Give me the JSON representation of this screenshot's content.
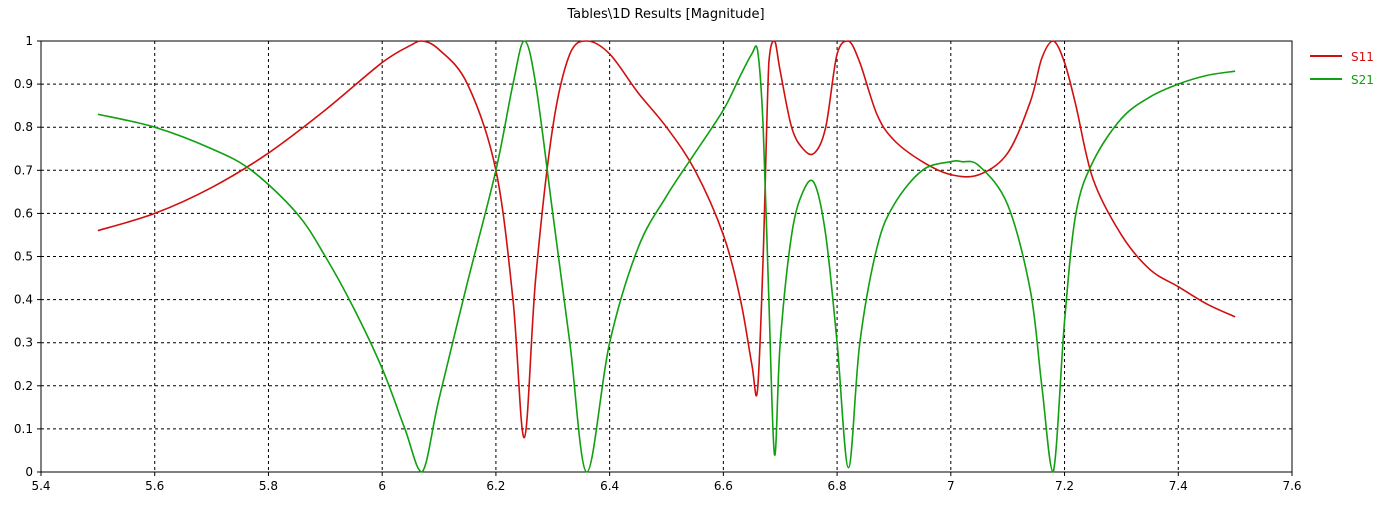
{
  "chart_data": {
    "type": "line",
    "title": "Tables\\1D Results [Magnitude]",
    "xlabel": "",
    "ylabel": "",
    "xlim": [
      5.4,
      7.6
    ],
    "ylim": [
      0,
      1
    ],
    "x_ticks": [
      "5.4",
      "5.6",
      "5.8",
      "6",
      "6.2",
      "6.4",
      "6.6",
      "6.8",
      "7",
      "7.2",
      "7.4",
      "7.6"
    ],
    "y_ticks": [
      "0",
      "0.1",
      "0.2",
      "0.3",
      "0.4",
      "0.5",
      "0.6",
      "0.7",
      "0.8",
      "0.9",
      "1"
    ],
    "grid": true,
    "legend_position": "right",
    "series": [
      {
        "name": "S11",
        "color": "#d01010",
        "x": [
          5.5,
          5.6,
          5.7,
          5.8,
          5.9,
          6.0,
          6.05,
          6.07,
          6.1,
          6.15,
          6.2,
          6.23,
          6.25,
          6.27,
          6.3,
          6.33,
          6.36,
          6.4,
          6.45,
          6.5,
          6.55,
          6.6,
          6.63,
          6.65,
          6.66,
          6.67,
          6.68,
          6.69,
          6.7,
          6.72,
          6.74,
          6.76,
          6.78,
          6.8,
          6.82,
          6.84,
          6.87,
          6.9,
          6.95,
          7.0,
          7.05,
          7.1,
          7.14,
          7.16,
          7.18,
          7.2,
          7.22,
          7.25,
          7.3,
          7.35,
          7.4,
          7.45,
          7.5
        ],
        "y": [
          0.56,
          0.6,
          0.66,
          0.74,
          0.84,
          0.95,
          0.99,
          1.0,
          0.98,
          0.9,
          0.7,
          0.4,
          0.08,
          0.45,
          0.8,
          0.97,
          1.0,
          0.97,
          0.88,
          0.8,
          0.7,
          0.55,
          0.4,
          0.25,
          0.19,
          0.5,
          0.95,
          1.0,
          0.93,
          0.8,
          0.75,
          0.74,
          0.8,
          0.97,
          1.0,
          0.95,
          0.83,
          0.77,
          0.72,
          0.69,
          0.69,
          0.74,
          0.86,
          0.96,
          1.0,
          0.95,
          0.85,
          0.68,
          0.55,
          0.47,
          0.43,
          0.39,
          0.36
        ]
      },
      {
        "name": "S21",
        "color": "#10a010",
        "x": [
          5.5,
          5.6,
          5.7,
          5.77,
          5.85,
          5.9,
          5.95,
          6.0,
          6.04,
          6.07,
          6.1,
          6.15,
          6.2,
          6.23,
          6.25,
          6.27,
          6.3,
          6.33,
          6.36,
          6.4,
          6.45,
          6.5,
          6.55,
          6.6,
          6.63,
          6.65,
          6.66,
          6.67,
          6.68,
          6.69,
          6.7,
          6.72,
          6.74,
          6.76,
          6.78,
          6.8,
          6.82,
          6.84,
          6.87,
          6.9,
          6.95,
          7.0,
          7.02,
          7.05,
          7.1,
          7.14,
          7.16,
          7.18,
          7.2,
          7.22,
          7.25,
          7.3,
          7.35,
          7.4,
          7.45,
          7.5
        ],
        "y": [
          0.83,
          0.8,
          0.75,
          0.7,
          0.6,
          0.5,
          0.38,
          0.24,
          0.1,
          0.0,
          0.17,
          0.44,
          0.7,
          0.9,
          1.0,
          0.9,
          0.6,
          0.3,
          0.0,
          0.3,
          0.52,
          0.64,
          0.74,
          0.84,
          0.92,
          0.97,
          0.98,
          0.8,
          0.4,
          0.04,
          0.3,
          0.55,
          0.65,
          0.67,
          0.55,
          0.3,
          0.01,
          0.3,
          0.52,
          0.62,
          0.7,
          0.72,
          0.72,
          0.71,
          0.62,
          0.42,
          0.2,
          0.0,
          0.35,
          0.6,
          0.72,
          0.82,
          0.87,
          0.9,
          0.92,
          0.93
        ]
      }
    ]
  }
}
